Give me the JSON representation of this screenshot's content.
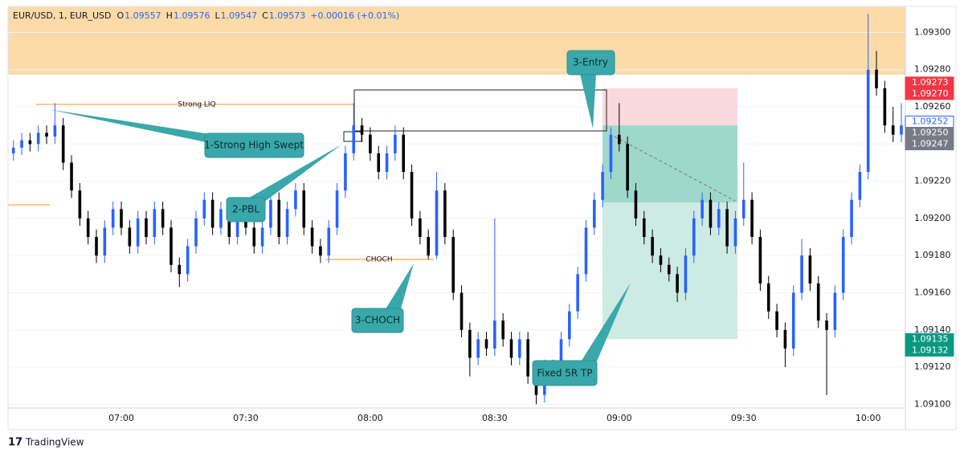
{
  "chart_data": {
    "type": "candlestick",
    "header": {
      "symbol": "EUR/USD, 1, EUR_USD",
      "fields": [
        {
          "label": "O",
          "value": 1.09557
        },
        {
          "label": "H",
          "value": 1.09576
        },
        {
          "label": "L",
          "value": 1.09547
        },
        {
          "label": "C",
          "value": 1.09573
        }
      ],
      "change": "+0.00016 (+0.01%)"
    },
    "up_color": "#2962ff",
    "down_color": "#000000",
    "categories": [
      null,
      null,
      null,
      null,
      null,
      null,
      null,
      null,
      null,
      null,
      null,
      null,
      null,
      "07:00",
      null,
      null,
      null,
      null,
      null,
      null,
      null,
      null,
      null,
      null,
      null,
      null,
      null,
      null,
      "07:30",
      null,
      null,
      null,
      null,
      null,
      null,
      null,
      null,
      null,
      null,
      null,
      null,
      null,
      null,
      "08:00",
      null,
      null,
      null,
      null,
      null,
      null,
      null,
      null,
      null,
      null,
      null,
      null,
      null,
      null,
      "08:30",
      null,
      null,
      null,
      null,
      null,
      null,
      null,
      null,
      null,
      null,
      null,
      null,
      null,
      null,
      "09:00",
      null,
      null,
      null,
      null,
      null,
      null,
      null,
      null,
      null,
      null,
      null,
      null,
      null,
      null,
      "09:30",
      null,
      null,
      null,
      null,
      null,
      null,
      null,
      null,
      null,
      null,
      null,
      null,
      null,
      null,
      "10:00",
      null,
      null,
      null,
      null
    ],
    "ohlc": [
      [
        1.09235,
        1.09242,
        1.09231,
        1.09238
      ],
      [
        1.09238,
        1.09246,
        1.09234,
        1.09242
      ],
      [
        1.09242,
        1.09246,
        1.09236,
        1.0924
      ],
      [
        1.0924,
        1.0925,
        1.09236,
        1.09246
      ],
      [
        1.09246,
        1.0925,
        1.0924,
        1.09244
      ],
      [
        1.09244,
        1.09262,
        1.0924,
        1.0925
      ],
      [
        1.0925,
        1.09254,
        1.09226,
        1.0923
      ],
      [
        1.0923,
        1.09234,
        1.09211,
        1.09215
      ],
      [
        1.09215,
        1.09219,
        1.09196,
        1.092
      ],
      [
        1.092,
        1.09204,
        1.09186,
        1.0919
      ],
      [
        1.0919,
        1.09194,
        1.09176,
        1.0918
      ],
      [
        1.0918,
        1.09199,
        1.09176,
        1.09195
      ],
      [
        1.09195,
        1.09209,
        1.09191,
        1.09205
      ],
      [
        1.09205,
        1.09209,
        1.09191,
        1.09195
      ],
      [
        1.09195,
        1.09199,
        1.09181,
        1.09185
      ],
      [
        1.09185,
        1.09204,
        1.09181,
        1.092
      ],
      [
        1.092,
        1.09204,
        1.09186,
        1.0919
      ],
      [
        1.0919,
        1.09209,
        1.09186,
        1.09205
      ],
      [
        1.09205,
        1.09209,
        1.09191,
        1.09195
      ],
      [
        1.09195,
        1.09199,
        1.09171,
        1.09175
      ],
      [
        1.09175,
        1.09179,
        1.09163,
        1.0917
      ],
      [
        1.0917,
        1.09189,
        1.09166,
        1.09185
      ],
      [
        1.09185,
        1.09204,
        1.09181,
        1.092
      ],
      [
        1.092,
        1.09214,
        1.09196,
        1.0921
      ],
      [
        1.0921,
        1.09214,
        1.09191,
        1.09195
      ],
      [
        1.09195,
        1.09209,
        1.09191,
        1.09205
      ],
      [
        1.09205,
        1.09209,
        1.09186,
        1.0919
      ],
      [
        1.0919,
        1.09204,
        1.09186,
        1.092
      ],
      [
        1.092,
        1.09204,
        1.09191,
        1.09195
      ],
      [
        1.09195,
        1.09199,
        1.09181,
        1.09185
      ],
      [
        1.09185,
        1.09199,
        1.09181,
        1.09195
      ],
      [
        1.09195,
        1.09214,
        1.09191,
        1.0921
      ],
      [
        1.0921,
        1.09214,
        1.09186,
        1.0919
      ],
      [
        1.0919,
        1.09209,
        1.09186,
        1.09205
      ],
      [
        1.09205,
        1.09219,
        1.09201,
        1.09215
      ],
      [
        1.09215,
        1.09219,
        1.09191,
        1.09195
      ],
      [
        1.09195,
        1.09199,
        1.09181,
        1.09185
      ],
      [
        1.09185,
        1.09189,
        1.09176,
        1.0918
      ],
      [
        1.0918,
        1.09199,
        1.09176,
        1.09195
      ],
      [
        1.09195,
        1.09219,
        1.09191,
        1.09215
      ],
      [
        1.09215,
        1.09239,
        1.09211,
        1.09235
      ],
      [
        1.09235,
        1.09262,
        1.09231,
        1.0925
      ],
      [
        1.0925,
        1.09254,
        1.09241,
        1.09245
      ],
      [
        1.09245,
        1.09249,
        1.09231,
        1.09235
      ],
      [
        1.09235,
        1.09239,
        1.09221,
        1.09225
      ],
      [
        1.09225,
        1.09239,
        1.09221,
        1.09235
      ],
      [
        1.09235,
        1.0925,
        1.09231,
        1.09245
      ],
      [
        1.09245,
        1.09249,
        1.09221,
        1.09225
      ],
      [
        1.09225,
        1.09229,
        1.09196,
        1.092
      ],
      [
        1.092,
        1.09204,
        1.09186,
        1.0919
      ],
      [
        1.0919,
        1.09194,
        1.09178,
        1.0918
      ],
      [
        1.0918,
        1.09225,
        1.09178,
        1.09215
      ],
      [
        1.09215,
        1.09219,
        1.09186,
        1.0919
      ],
      [
        1.0919,
        1.09194,
        1.09156,
        1.0916
      ],
      [
        1.0916,
        1.09164,
        1.09136,
        1.0914
      ],
      [
        1.0914,
        1.09144,
        1.09115,
        1.09125
      ],
      [
        1.09125,
        1.09139,
        1.09121,
        1.09135
      ],
      [
        1.09135,
        1.09139,
        1.09126,
        1.0913
      ],
      [
        1.0913,
        1.092,
        1.09126,
        1.09145
      ],
      [
        1.09145,
        1.09149,
        1.09131,
        1.09135
      ],
      [
        1.09135,
        1.09139,
        1.09121,
        1.09125
      ],
      [
        1.09125,
        1.09139,
        1.09121,
        1.09135
      ],
      [
        1.09135,
        1.09139,
        1.09111,
        1.09115
      ],
      [
        1.09115,
        1.09119,
        1.091,
        1.09105
      ],
      [
        1.09105,
        1.09124,
        1.09101,
        1.0912
      ],
      [
        1.0912,
        1.09124,
        1.09111,
        1.09115
      ],
      [
        1.09115,
        1.09139,
        1.09111,
        1.09135
      ],
      [
        1.09135,
        1.09154,
        1.09131,
        1.0915
      ],
      [
        1.0915,
        1.09174,
        1.09146,
        1.0917
      ],
      [
        1.0917,
        1.09199,
        1.09166,
        1.09195
      ],
      [
        1.09195,
        1.09214,
        1.09191,
        1.0921
      ],
      [
        1.0921,
        1.09229,
        1.09206,
        1.09225
      ],
      [
        1.09225,
        1.09249,
        1.09221,
        1.09245
      ],
      [
        1.09245,
        1.09262,
        1.09236,
        1.0924
      ],
      [
        1.0924,
        1.09244,
        1.09211,
        1.09215
      ],
      [
        1.09215,
        1.09219,
        1.09196,
        1.092
      ],
      [
        1.092,
        1.09204,
        1.09186,
        1.0919
      ],
      [
        1.0919,
        1.09194,
        1.09176,
        1.0918
      ],
      [
        1.0918,
        1.09184,
        1.09171,
        1.09175
      ],
      [
        1.09175,
        1.09179,
        1.09166,
        1.0917
      ],
      [
        1.0917,
        1.09174,
        1.09155,
        1.0916
      ],
      [
        1.0916,
        1.09184,
        1.09156,
        1.0918
      ],
      [
        1.0918,
        1.09204,
        1.09176,
        1.092
      ],
      [
        1.092,
        1.09214,
        1.09196,
        1.0921
      ],
      [
        1.0921,
        1.09214,
        1.09191,
        1.09195
      ],
      [
        1.09195,
        1.09209,
        1.09191,
        1.09205
      ],
      [
        1.09205,
        1.09209,
        1.09181,
        1.09185
      ],
      [
        1.09185,
        1.09204,
        1.09181,
        1.092
      ],
      [
        1.092,
        1.0923,
        1.09196,
        1.0921
      ],
      [
        1.0921,
        1.09214,
        1.09186,
        1.0919
      ],
      [
        1.0919,
        1.09194,
        1.09161,
        1.09165
      ],
      [
        1.09165,
        1.09169,
        1.09146,
        1.0915
      ],
      [
        1.0915,
        1.09154,
        1.09136,
        1.0914
      ],
      [
        1.0914,
        1.09144,
        1.0912,
        1.0913
      ],
      [
        1.0913,
        1.09164,
        1.09126,
        1.0916
      ],
      [
        1.0916,
        1.09189,
        1.09156,
        1.0918
      ],
      [
        1.0918,
        1.09184,
        1.09161,
        1.09165
      ],
      [
        1.09165,
        1.09169,
        1.09141,
        1.09145
      ],
      [
        1.09145,
        1.09149,
        1.09105,
        1.0914
      ],
      [
        1.0914,
        1.09164,
        1.09136,
        1.0916
      ],
      [
        1.0916,
        1.09194,
        1.09156,
        1.0919
      ],
      [
        1.0919,
        1.09214,
        1.09186,
        1.0921
      ],
      [
        1.0921,
        1.09229,
        1.09206,
        1.09225
      ],
      [
        1.09225,
        1.0931,
        1.09221,
        1.0928
      ],
      [
        1.0928,
        1.0929,
        1.09266,
        1.0927
      ],
      [
        1.0927,
        1.09274,
        1.09246,
        1.0925
      ],
      [
        1.0925,
        1.0926,
        1.09241,
        1.09245
      ],
      [
        1.09245,
        1.09262,
        1.09241,
        1.0925
      ]
    ],
    "ylim": [
      1.09098,
      1.09314
    ],
    "yticks": [
      {
        "value": 1.091,
        "label": "1.09100"
      },
      {
        "value": 1.0912,
        "label": "1.09120"
      },
      {
        "value": 1.0914,
        "label": "1.09140"
      },
      {
        "value": 1.0916,
        "label": "1.09160"
      },
      {
        "value": 1.0918,
        "label": "1.09180"
      },
      {
        "value": 1.092,
        "label": "1.09200"
      },
      {
        "value": 1.0922,
        "label": "1.09220"
      },
      {
        "value": 1.0924,
        "label": "1.09240"
      },
      {
        "value": 1.0926,
        "label": "1.09260"
      },
      {
        "value": 1.0928,
        "label": "1.09280"
      },
      {
        "value": 1.093,
        "label": "1.09300"
      }
    ],
    "grid": true,
    "price_labels": [
      {
        "value": 1.09273,
        "label": "1.09273",
        "color": "#f23645"
      },
      {
        "value": 1.0927,
        "label": "1.09270",
        "color": "#f23645"
      },
      {
        "value": 1.09252,
        "label": "1.09252",
        "color": "#ffffff"
      },
      {
        "value": 1.0925,
        "label": "1.09250",
        "color": "#787b86"
      },
      {
        "value": 1.09247,
        "label": "1.09247",
        "color": "#787b86"
      },
      {
        "value": 1.09135,
        "label": "1.09135",
        "color": "#089981"
      },
      {
        "value": 1.09132,
        "label": "1.09132",
        "color": "#089981"
      }
    ],
    "annotations": {
      "liq": "Strong LIQ",
      "choch_line": "CHOCH",
      "c1": "1-Strong High Swept",
      "c2": "2-PBL",
      "c3": "3-CHOCH",
      "c4": "3-Entry",
      "c5": "Fixed 5R TP"
    },
    "brand": "TradingView"
  }
}
